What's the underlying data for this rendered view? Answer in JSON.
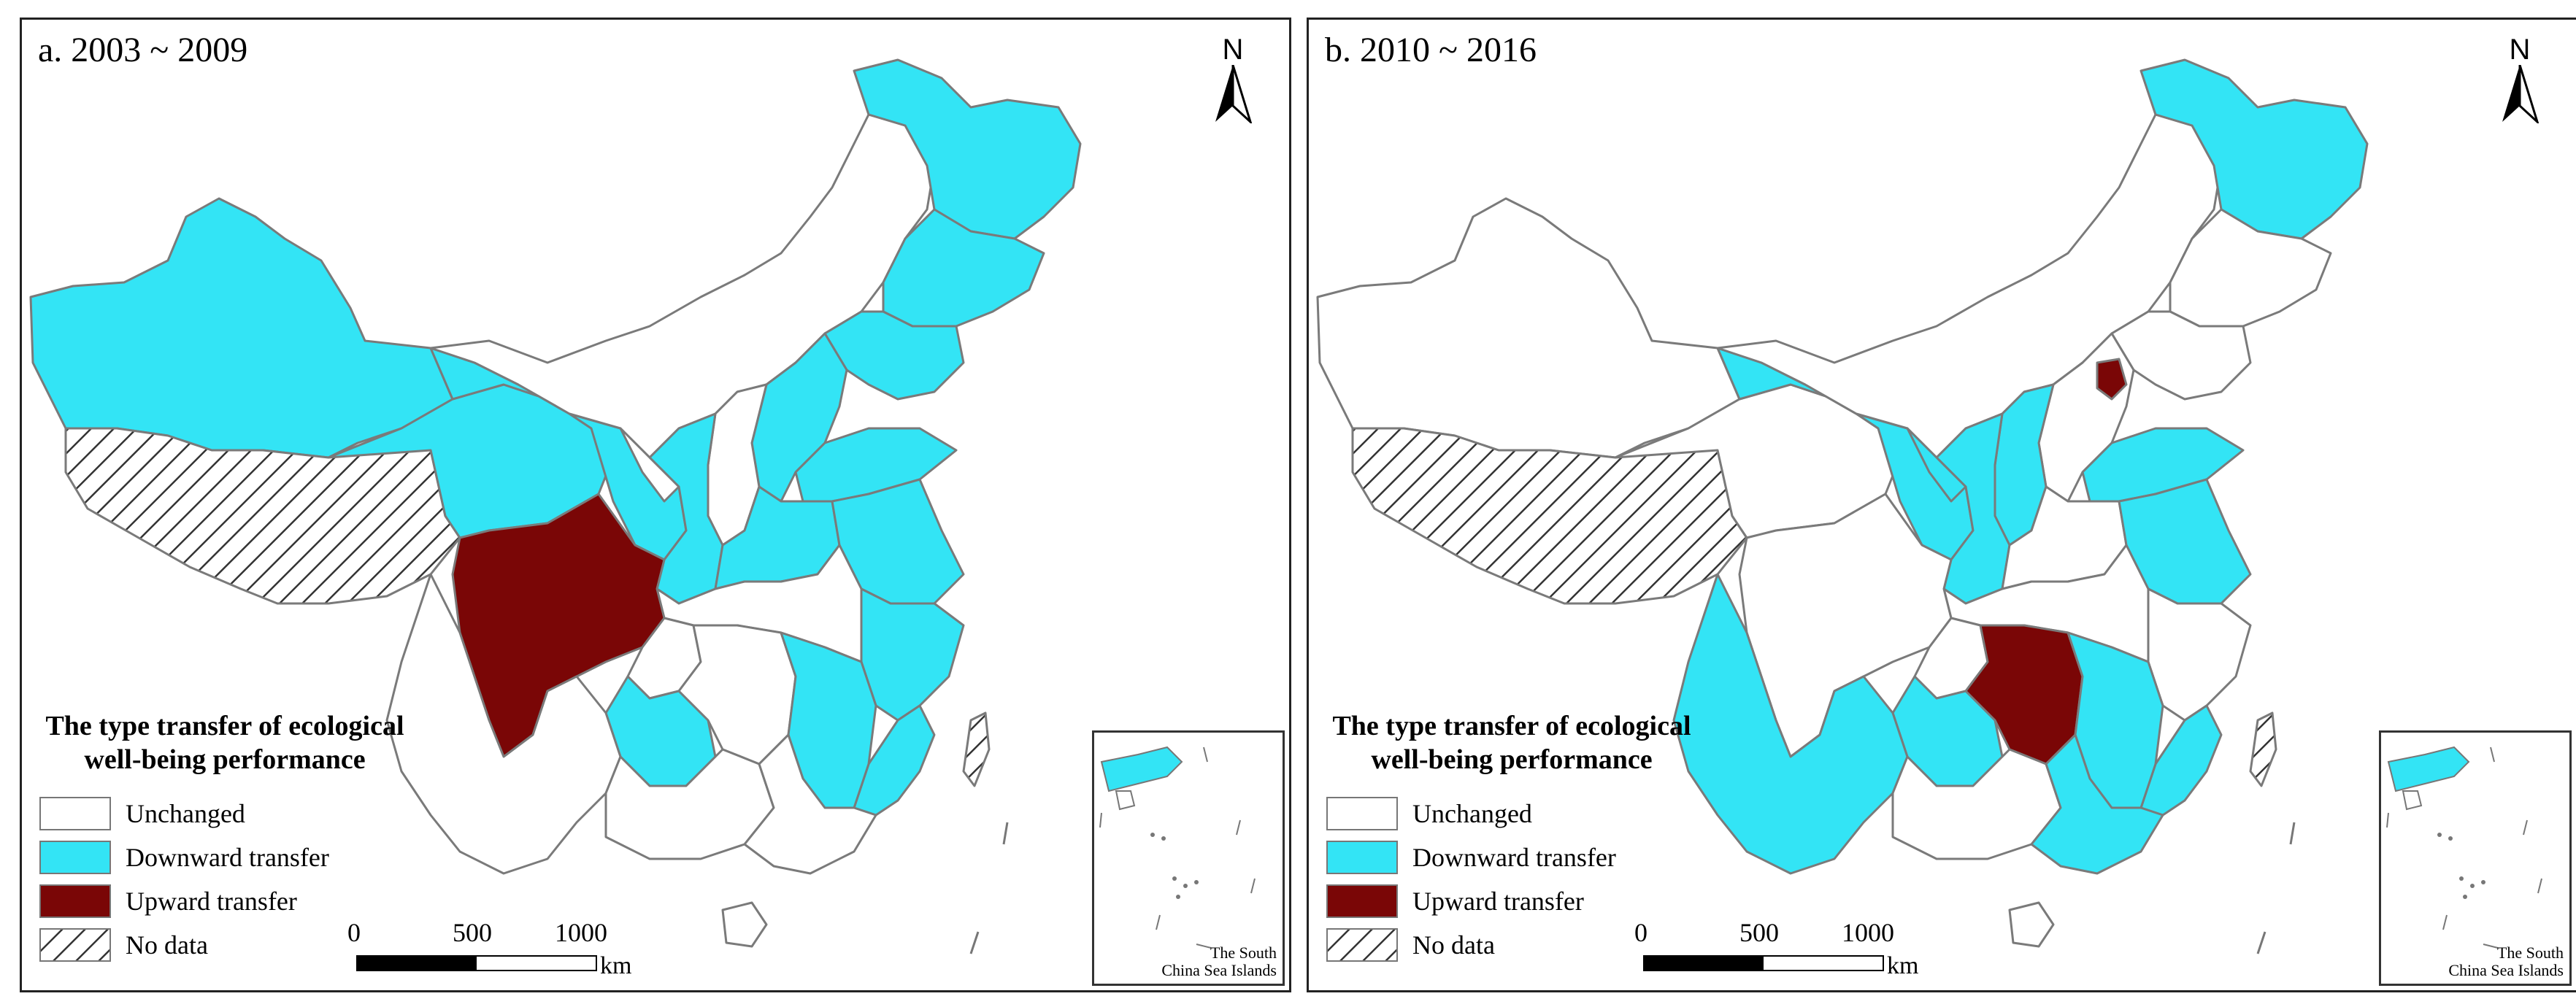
{
  "colors": {
    "unchanged": "#ffffff",
    "downward": "#33e4f5",
    "upward": "#7a0606",
    "border": "#777777"
  },
  "panels": [
    {
      "title": "a. 2003 ~ 2009",
      "north_label": "N",
      "legend": {
        "title_line1": "The type transfer of ecological",
        "title_line2": "well-being performance",
        "items": [
          {
            "label": "Unchanged",
            "class": "unchanged"
          },
          {
            "label": "Downward transfer",
            "class": "downward"
          },
          {
            "label": "Upward transfer",
            "class": "upward"
          },
          {
            "label": "No data",
            "class": "nodata"
          }
        ]
      },
      "scale": {
        "ticks": [
          "0",
          "500",
          "1000"
        ],
        "unit": "km"
      },
      "inset_label_line1": "The South",
      "inset_label_line2": "China Sea Islands"
    },
    {
      "title": "b. 2010 ~ 2016",
      "north_label": "N",
      "legend": {
        "title_line1": "The type transfer of ecological",
        "title_line2": "well-being performance",
        "items": [
          {
            "label": "Unchanged",
            "class": "unchanged"
          },
          {
            "label": "Downward transfer",
            "class": "downward"
          },
          {
            "label": "Upward transfer",
            "class": "upward"
          },
          {
            "label": "No data",
            "class": "nodata"
          }
        ]
      },
      "scale": {
        "ticks": [
          "0",
          "500",
          "1000"
        ],
        "unit": "km"
      },
      "inset_label_line1": "The South",
      "inset_label_line2": "China Sea Islands"
    }
  ]
}
